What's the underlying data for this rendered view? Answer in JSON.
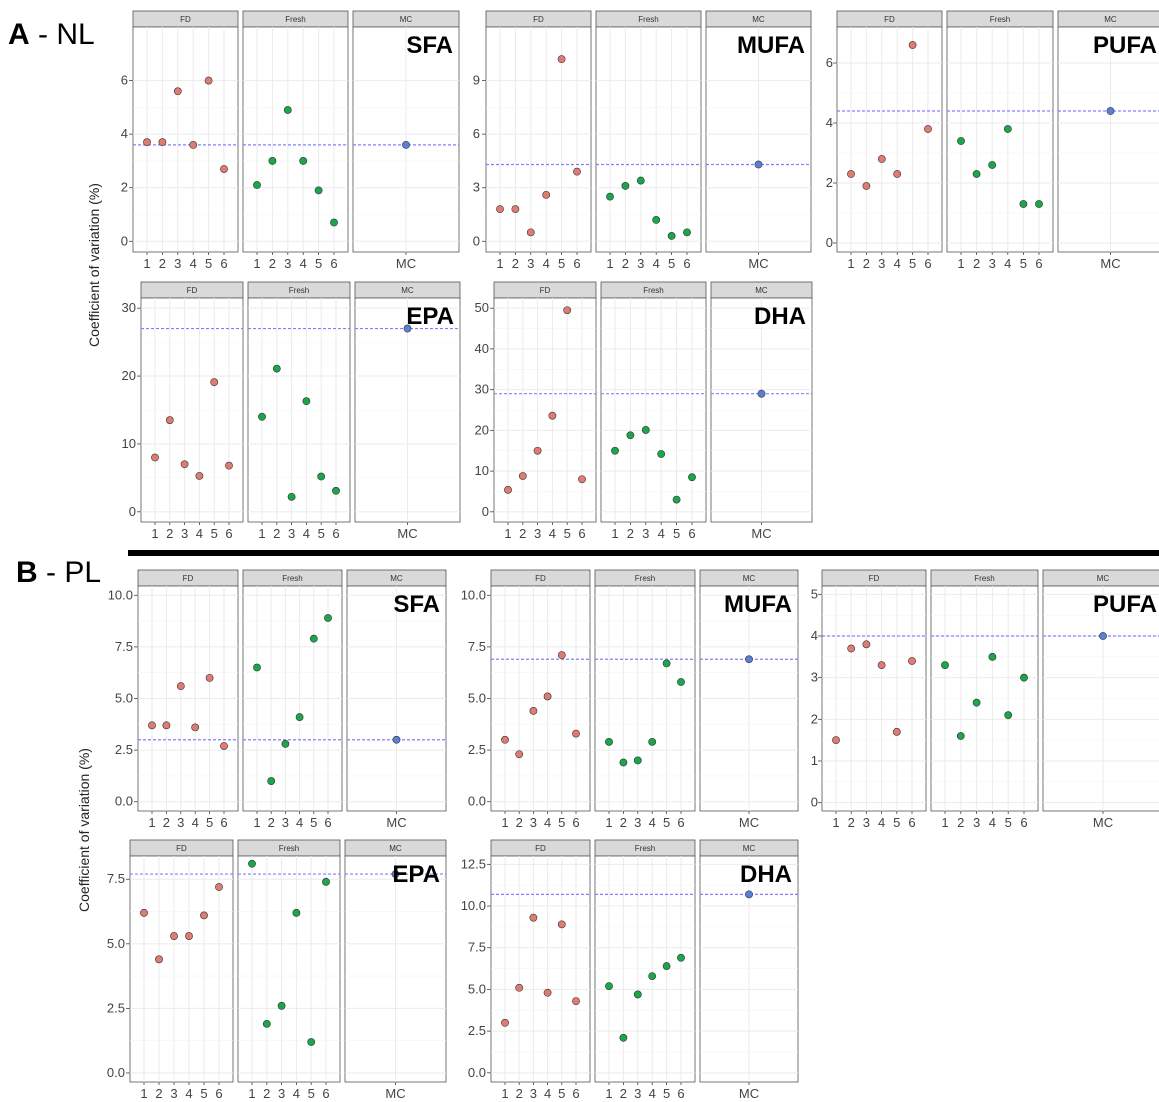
{
  "sections": [
    {
      "letter": "A",
      "dash": " - ",
      "name": "NL"
    },
    {
      "letter": "B",
      "dash": " - ",
      "name": "PL"
    }
  ],
  "ylabel": "Coefficient of variation (%)",
  "facet_labels": [
    "FD",
    "Fresh",
    "MC"
  ],
  "colors": {
    "FD": "#e07b73",
    "Fresh": "#1aa64a",
    "MC": "#5b7fd6",
    "ref_line": "#8080ff",
    "strip": "#d9d9d9"
  },
  "chart_data": [
    {
      "type": "scatter",
      "section": "A",
      "title": "SFA",
      "yticks": [
        0,
        2,
        4,
        6
      ],
      "ylim": [
        -0.4,
        8.0
      ],
      "FD": [
        3.7,
        3.7,
        5.6,
        3.6,
        6.0,
        2.7
      ],
      "Fresh": [
        2.1,
        3.0,
        4.9,
        3.0,
        1.9,
        0.7
      ],
      "MC": 3.6,
      "ref": 3.6
    },
    {
      "type": "scatter",
      "section": "A",
      "title": "MUFA",
      "yticks": [
        0,
        3,
        6,
        9
      ],
      "ylim": [
        -0.6,
        12.0
      ],
      "FD": [
        1.8,
        1.8,
        0.5,
        2.6,
        10.2,
        3.9
      ],
      "Fresh": [
        2.5,
        3.1,
        3.4,
        1.2,
        0.3,
        0.5
      ],
      "MC": 4.3,
      "ref": 4.3
    },
    {
      "type": "scatter",
      "section": "A",
      "title": "PUFA",
      "yticks": [
        0,
        2,
        4,
        6
      ],
      "ylim": [
        -0.3,
        7.2
      ],
      "FD": [
        2.3,
        1.9,
        2.8,
        2.3,
        6.6,
        3.8
      ],
      "Fresh": [
        3.4,
        2.3,
        2.6,
        3.8,
        1.3,
        1.3
      ],
      "MC": 4.4,
      "ref": 4.4
    },
    {
      "type": "scatter",
      "section": "A",
      "title": "EPA",
      "yticks": [
        0,
        10,
        20,
        30
      ],
      "ylim": [
        -1.5,
        31.5
      ],
      "FD": [
        8.0,
        13.5,
        7.0,
        5.3,
        19.1,
        6.8
      ],
      "Fresh": [
        14.0,
        21.1,
        2.2,
        16.3,
        5.2,
        3.1
      ],
      "MC": 27.0,
      "ref": 27.0
    },
    {
      "type": "scatter",
      "section": "A",
      "title": "DHA",
      "yticks": [
        0,
        10,
        20,
        30,
        40,
        50
      ],
      "ylim": [
        -2.5,
        52.5
      ],
      "FD": [
        5.4,
        8.8,
        15.0,
        23.6,
        49.5,
        8.0
      ],
      "Fresh": [
        15.0,
        18.8,
        20.1,
        14.2,
        3.0,
        8.5
      ],
      "MC": 29.0,
      "ref": 29.0
    },
    {
      "type": "scatter",
      "section": "B",
      "title": "SFA",
      "yticks": [
        0.0,
        2.5,
        5.0,
        7.5,
        10.0
      ],
      "yfmt": 1,
      "ylim": [
        -0.45,
        10.45
      ],
      "FD": [
        3.7,
        3.7,
        5.6,
        3.6,
        6.0,
        2.7
      ],
      "Fresh": [
        6.5,
        1.0,
        2.8,
        4.1,
        7.9,
        8.9
      ],
      "MC": 3.0,
      "ref": 3.0
    },
    {
      "type": "scatter",
      "section": "B",
      "title": "MUFA",
      "yticks": [
        0.0,
        2.5,
        5.0,
        7.5,
        10.0
      ],
      "yfmt": 1,
      "ylim": [
        -0.45,
        10.45
      ],
      "FD": [
        3.0,
        2.3,
        4.4,
        5.1,
        7.1,
        3.3
      ],
      "Fresh": [
        2.9,
        1.9,
        2.0,
        2.9,
        6.7,
        5.8
      ],
      "MC": 6.9,
      "ref": 6.9
    },
    {
      "type": "scatter",
      "section": "B",
      "title": "PUFA",
      "yticks": [
        0,
        1,
        2,
        3,
        4,
        5
      ],
      "ylim": [
        -0.2,
        5.2
      ],
      "FD": [
        1.5,
        3.7,
        3.8,
        3.3,
        1.7,
        3.4
      ],
      "Fresh": [
        3.3,
        1.6,
        2.4,
        3.5,
        2.1,
        3.0
      ],
      "MC": 4.0,
      "ref": 4.0
    },
    {
      "type": "scatter",
      "section": "B",
      "title": "EPA",
      "yticks": [
        0.0,
        2.5,
        5.0,
        7.5
      ],
      "yfmt": 1,
      "ylim": [
        -0.35,
        8.4
      ],
      "FD": [
        6.2,
        4.4,
        5.3,
        5.3,
        6.1,
        7.2
      ],
      "Fresh": [
        8.1,
        1.9,
        2.6,
        6.2,
        1.2,
        7.4
      ],
      "MC": 7.7,
      "ref": 7.7
    },
    {
      "type": "scatter",
      "section": "B",
      "title": "DHA",
      "yticks": [
        0.0,
        2.5,
        5.0,
        7.5,
        10.0,
        12.5
      ],
      "yfmt": 1,
      "ylim": [
        -0.55,
        13.0
      ],
      "FD": [
        3.0,
        5.1,
        9.3,
        4.8,
        8.9,
        4.3
      ],
      "Fresh": [
        5.2,
        2.1,
        4.7,
        5.8,
        6.4,
        6.9
      ],
      "MC": 10.7,
      "ref": 10.7
    }
  ],
  "x_labels": {
    "FD": [
      "1",
      "2",
      "3",
      "4",
      "5",
      "6"
    ],
    "Fresh": [
      "1",
      "2",
      "3",
      "4",
      "5",
      "6"
    ],
    "MC": [
      "MC"
    ]
  }
}
